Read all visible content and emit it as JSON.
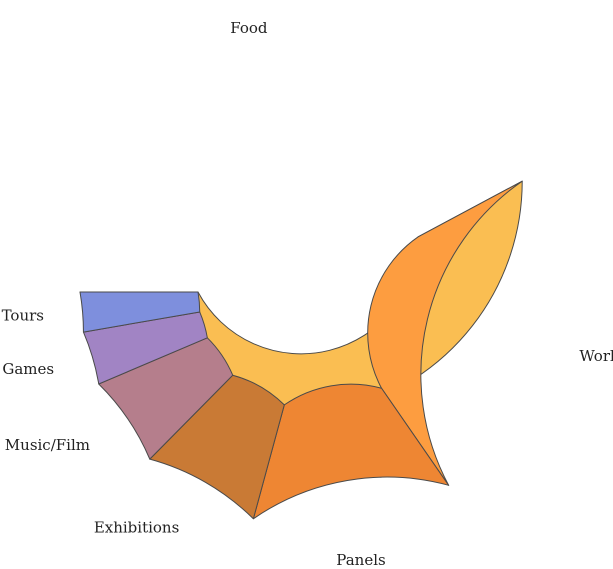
{
  "chart_data": {
    "type": "pie",
    "style": "donut",
    "title": "",
    "legend": "none",
    "categories": [
      "Food",
      "Workshops",
      "Panels",
      "Exhibitions",
      "Music/Film",
      "Games",
      "Tours"
    ],
    "values": [
      40.2,
      22.1,
      13.2,
      7.8,
      5.9,
      3.5,
      2.6
    ],
    "unit": "%",
    "colors": [
      "#FABE52",
      "#FD9D40",
      "#EE8633",
      "#C97A35",
      "#B57E8C",
      "#A184C4",
      "#7E8FDD"
    ],
    "start_angle_deg": 180,
    "direction": "counterclockwise"
  }
}
